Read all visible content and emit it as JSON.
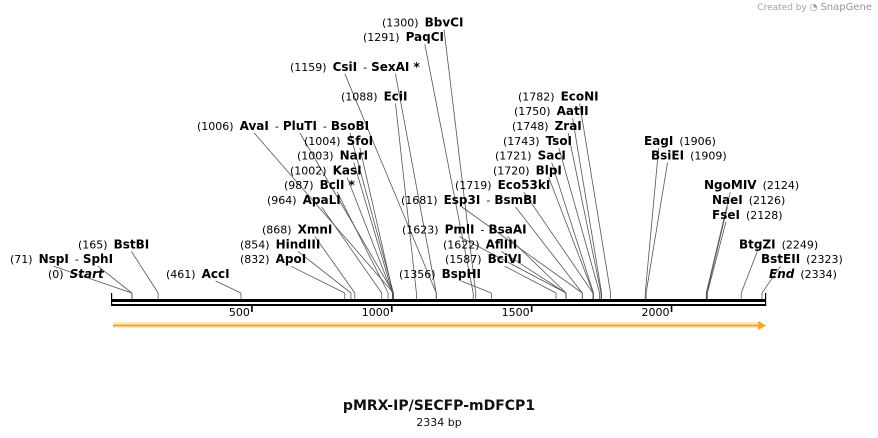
{
  "credit": {
    "prefix": "Created by",
    "brand": "SnapGene"
  },
  "title": "pMRX-IP/SECFP-mDFCP1",
  "size_label": "2334 bp",
  "sequence_length": 2334,
  "ticks": [
    500,
    1000,
    1500,
    2000
  ],
  "feature_color": "#f5a623",
  "labels": [
    {
      "row": 0,
      "x0": 48,
      "parts": [
        {
          "num": "(0)"
        },
        {
          "name": "Start",
          "italic": true
        }
      ]
    },
    {
      "row": 0,
      "x0": 166,
      "parts": [
        {
          "num": "(461)"
        },
        {
          "name": "AccI",
          "pos": 461
        }
      ]
    },
    {
      "row": 0,
      "x0": 399,
      "parts": [
        {
          "num": "(1356)"
        },
        {
          "name": "BspHI",
          "pos": 1356
        }
      ]
    },
    {
      "row": 0,
      "x0": 769,
      "parts": [
        {
          "name": "End",
          "italic": true
        },
        {
          "num": "(2334)"
        }
      ]
    },
    {
      "row": 1,
      "x0": 761,
      "parts": [
        {
          "name": "BstEII",
          "pos": 2323
        },
        {
          "num": "(2323)"
        }
      ]
    },
    {
      "row": 1,
      "x0": 10,
      "parts": [
        {
          "num": "(71)"
        },
        {
          "name": "NspI",
          "pos": 71
        },
        {
          "sep": "-"
        },
        {
          "name": "SphI",
          "pos": 71
        }
      ]
    },
    {
      "row": 1,
      "x0": 240,
      "parts": [
        {
          "num": "(832)"
        },
        {
          "name": "ApoI",
          "pos": 832
        }
      ]
    },
    {
      "row": 1,
      "x0": 445,
      "parts": [
        {
          "num": "(1587)"
        },
        {
          "name": "BciVI",
          "pos": 1587
        }
      ]
    },
    {
      "row": 2,
      "x0": 78,
      "parts": [
        {
          "num": "(165)"
        },
        {
          "name": "BstBI",
          "pos": 165
        }
      ]
    },
    {
      "row": 2,
      "x0": 240,
      "parts": [
        {
          "num": "(854)"
        },
        {
          "name": "HindIII",
          "pos": 854
        }
      ]
    },
    {
      "row": 2,
      "x0": 443,
      "parts": [
        {
          "num": "(1622)"
        },
        {
          "name": "AflIII",
          "pos": 1622
        }
      ]
    },
    {
      "row": 2,
      "x0": 739,
      "parts": [
        {
          "name": "BtgZI",
          "pos": 2249
        },
        {
          "num": "(2249)"
        }
      ]
    },
    {
      "row": 3,
      "x0": 262,
      "parts": [
        {
          "num": "(868)"
        },
        {
          "name": "XmnI",
          "pos": 868
        }
      ]
    },
    {
      "row": 3,
      "x0": 402,
      "parts": [
        {
          "num": "(1623)"
        },
        {
          "name": "PmlI",
          "pos": 1623
        },
        {
          "sep": "-"
        },
        {
          "name": "BsaAI",
          "pos": 1623
        }
      ]
    },
    {
      "row": 4,
      "x0": 712,
      "parts": [
        {
          "name": "FseI",
          "pos": 2128
        },
        {
          "num": "(2128)"
        }
      ]
    },
    {
      "row": 5,
      "x0": 712,
      "parts": [
        {
          "name": "NaeI",
          "pos": 2126
        },
        {
          "num": "(2126)"
        }
      ]
    },
    {
      "row": 5,
      "x0": 267,
      "parts": [
        {
          "num": "(964)"
        },
        {
          "name": "ApaLI",
          "pos": 964
        }
      ]
    },
    {
      "row": 5,
      "x0": 401,
      "parts": [
        {
          "num": "(1681)"
        },
        {
          "name": "Esp3I",
          "pos": 1681
        },
        {
          "sep": "-"
        },
        {
          "name": "BsmBI",
          "pos": 1681
        }
      ]
    },
    {
      "row": 6,
      "x0": 704,
      "parts": [
        {
          "name": "NgoMIV",
          "pos": 2124
        },
        {
          "num": "(2124)"
        }
      ]
    },
    {
      "row": 6,
      "x0": 284,
      "parts": [
        {
          "num": "(987)"
        },
        {
          "name": "BclI *",
          "pos": 987
        }
      ]
    },
    {
      "row": 6,
      "x0": 455,
      "parts": [
        {
          "num": "(1719)"
        },
        {
          "name": "Eco53kI",
          "pos": 1719
        }
      ]
    },
    {
      "row": 7,
      "x0": 290,
      "parts": [
        {
          "num": "(1002)"
        },
        {
          "name": "KasI",
          "pos": 1002
        }
      ]
    },
    {
      "row": 7,
      "x0": 493,
      "parts": [
        {
          "num": "(1720)"
        },
        {
          "name": "BlpI",
          "pos": 1720
        }
      ]
    },
    {
      "row": 8,
      "x0": 297,
      "parts": [
        {
          "num": "(1003)"
        },
        {
          "name": "NarI",
          "pos": 1003
        }
      ]
    },
    {
      "row": 8,
      "x0": 495,
      "parts": [
        {
          "num": "(1721)"
        },
        {
          "name": "SacI",
          "pos": 1721
        }
      ]
    },
    {
      "row": 8,
      "x0": 651,
      "parts": [
        {
          "name": "BsiEI",
          "pos": 1909
        },
        {
          "num": "(1909)"
        }
      ]
    },
    {
      "row": 9,
      "x0": 304,
      "parts": [
        {
          "num": "(1004)"
        },
        {
          "name": "SfoI",
          "pos": 1004
        }
      ]
    },
    {
      "row": 9,
      "x0": 503,
      "parts": [
        {
          "num": "(1743)"
        },
        {
          "name": "TsoI",
          "pos": 1743
        }
      ]
    },
    {
      "row": 9,
      "x0": 644,
      "parts": [
        {
          "name": "EagI",
          "pos": 1906
        },
        {
          "num": "(1906)"
        }
      ]
    },
    {
      "row": 10,
      "x0": 197,
      "parts": [
        {
          "num": "(1006)"
        },
        {
          "name": "AvaI",
          "pos": 1006
        },
        {
          "sep": "-"
        },
        {
          "name": "PluTI",
          "pos": 1006
        },
        {
          "sep": "-"
        },
        {
          "name": "BsoBI",
          "pos": 1006
        }
      ]
    },
    {
      "row": 10,
      "x0": 512,
      "parts": [
        {
          "num": "(1748)"
        },
        {
          "name": "ZraI",
          "pos": 1748
        }
      ]
    },
    {
      "row": 11,
      "x0": 514,
      "parts": [
        {
          "num": "(1750)"
        },
        {
          "name": "AatII",
          "pos": 1750
        }
      ]
    },
    {
      "row": 12,
      "x0": 341,
      "parts": [
        {
          "num": "(1088)"
        },
        {
          "name": "EciI",
          "pos": 1088
        }
      ]
    },
    {
      "row": 12,
      "x0": 518,
      "parts": [
        {
          "num": "(1782)"
        },
        {
          "name": "EcoNI",
          "pos": 1782
        }
      ]
    },
    {
      "row": 14,
      "x0": 290,
      "parts": [
        {
          "num": "(1159)"
        },
        {
          "name": "CsiI",
          "pos": 1159
        },
        {
          "sep": "-"
        },
        {
          "name": "SexAI *",
          "pos": 1159
        }
      ]
    },
    {
      "row": 16,
      "x0": 363,
      "parts": [
        {
          "num": "(1291)"
        },
        {
          "name": "PaqCI",
          "pos": 1291
        }
      ]
    },
    {
      "row": 17,
      "x0": 382,
      "parts": [
        {
          "num": "(1300)"
        },
        {
          "name": "BbvCI",
          "pos": 1300
        }
      ]
    }
  ]
}
